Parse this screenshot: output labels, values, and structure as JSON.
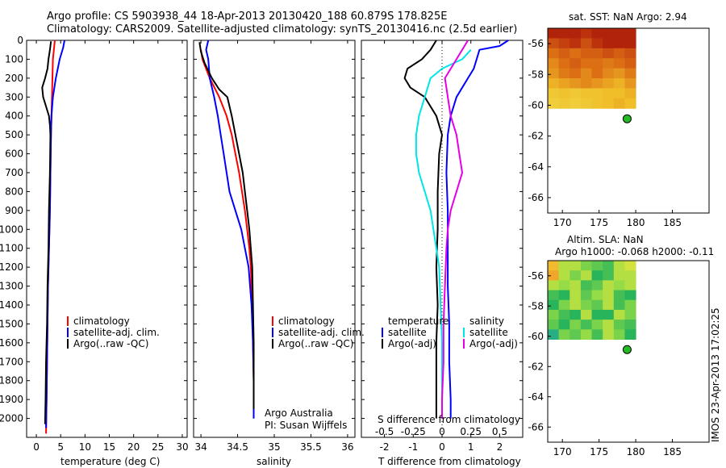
{
  "header": {
    "line1": "Argo profile: CS 5903938_44 18-Apr-2013 20130420_188 60.879S 178.825E",
    "line2": "Climatology: CARS2009. Satellite-adjusted climatology: synTS_20130416.nc (2.5d earlier)"
  },
  "colors": {
    "climatology": "#ff0000",
    "satellite": "#0000ff",
    "argo": "#000000",
    "salinity_sat": "#00e5e5",
    "salinity_argo": "#e500e5",
    "float_marker": "#22bb22"
  },
  "chart_data": [
    {
      "type": "line",
      "id": "temperature",
      "xlabel": "temperature (deg C)",
      "xlim": [
        -2,
        31
      ],
      "ylim": [
        2100,
        0
      ],
      "xticks": [
        0,
        5,
        10,
        15,
        20,
        25,
        30
      ],
      "yticks": [
        0,
        100,
        200,
        300,
        400,
        500,
        600,
        700,
        800,
        900,
        1000,
        1100,
        1200,
        1300,
        1400,
        1500,
        1600,
        1700,
        1800,
        1900,
        2000
      ],
      "legend": [
        "climatology",
        "satellite-adj. clim.",
        "Argo(..raw -QC)"
      ],
      "series": [
        {
          "name": "climatology",
          "color": "#ff0000",
          "points": [
            [
              3.8,
              0
            ],
            [
              3.6,
              50
            ],
            [
              3.4,
              100
            ],
            [
              3.3,
              200
            ],
            [
              3.2,
              300
            ],
            [
              3.1,
              400
            ],
            [
              3.0,
              500
            ],
            [
              2.9,
              700
            ],
            [
              2.8,
              900
            ],
            [
              2.6,
              1100
            ],
            [
              2.4,
              1300
            ],
            [
              2.3,
              1500
            ],
            [
              2.2,
              1700
            ],
            [
              2.1,
              1900
            ],
            [
              2.0,
              2080
            ]
          ]
        },
        {
          "name": "satellite-adj. clim.",
          "color": "#0000ff",
          "points": [
            [
              5.8,
              0
            ],
            [
              5.5,
              40
            ],
            [
              4.8,
              100
            ],
            [
              4.0,
              200
            ],
            [
              3.4,
              300
            ],
            [
              3.1,
              400
            ],
            [
              3.0,
              500
            ],
            [
              2.9,
              700
            ],
            [
              2.8,
              900
            ],
            [
              2.6,
              1100
            ],
            [
              2.4,
              1300
            ],
            [
              2.3,
              1500
            ],
            [
              2.2,
              1700
            ],
            [
              2.1,
              1900
            ],
            [
              2.0,
              2050
            ]
          ]
        },
        {
          "name": "Argo(..raw -QC)",
          "color": "#000000",
          "points": [
            [
              3.0,
              5
            ],
            [
              2.8,
              50
            ],
            [
              2.5,
              100
            ],
            [
              2.3,
              150
            ],
            [
              1.8,
              200
            ],
            [
              1.2,
              250
            ],
            [
              1.4,
              300
            ],
            [
              2.0,
              350
            ],
            [
              2.6,
              400
            ],
            [
              2.8,
              450
            ],
            [
              2.9,
              500
            ],
            [
              2.8,
              700
            ],
            [
              2.6,
              900
            ],
            [
              2.5,
              1100
            ],
            [
              2.3,
              1300
            ],
            [
              2.2,
              1500
            ],
            [
              2.0,
              1700
            ],
            [
              1.9,
              1900
            ],
            [
              1.8,
              2030
            ]
          ]
        }
      ]
    },
    {
      "type": "line",
      "id": "salinity",
      "xlabel": "salinity",
      "xlim": [
        33.9,
        36.1
      ],
      "ylim": [
        2100,
        0
      ],
      "xticks": [
        34,
        34.5,
        35,
        35.5,
        36
      ],
      "legend": [
        "climatology",
        "satellite-adj. clim.",
        "Argo(..raw -QC)"
      ],
      "annotations": [
        "Argo Australia",
        "PI: Susan Wijffels"
      ],
      "series": [
        {
          "name": "climatology",
          "color": "#ff0000",
          "points": [
            [
              34.0,
              50
            ],
            [
              34.02,
              100
            ],
            [
              34.12,
              200
            ],
            [
              34.25,
              300
            ],
            [
              34.35,
              400
            ],
            [
              34.42,
              500
            ],
            [
              34.47,
              600
            ],
            [
              34.52,
              700
            ],
            [
              34.56,
              800
            ],
            [
              34.6,
              900
            ],
            [
              34.63,
              1000
            ],
            [
              34.66,
              1100
            ],
            [
              34.68,
              1200
            ],
            [
              34.7,
              1400
            ],
            [
              34.71,
              1600
            ],
            [
              34.72,
              1800
            ],
            [
              34.72,
              2000
            ]
          ]
        },
        {
          "name": "satellite-adj. clim.",
          "color": "#0000ff",
          "points": [
            [
              34.1,
              0
            ],
            [
              34.07,
              50
            ],
            [
              34.1,
              100
            ],
            [
              34.12,
              200
            ],
            [
              34.18,
              300
            ],
            [
              34.23,
              400
            ],
            [
              34.27,
              500
            ],
            [
              34.31,
              600
            ],
            [
              34.35,
              700
            ],
            [
              34.39,
              800
            ],
            [
              34.47,
              900
            ],
            [
              34.55,
              1000
            ],
            [
              34.6,
              1100
            ],
            [
              34.65,
              1200
            ],
            [
              34.69,
              1400
            ],
            [
              34.71,
              1600
            ],
            [
              34.72,
              1800
            ],
            [
              34.72,
              2000
            ]
          ]
        },
        {
          "name": "Argo(..raw -QC)",
          "color": "#000000",
          "points": [
            [
              33.98,
              10
            ],
            [
              34.0,
              60
            ],
            [
              34.05,
              120
            ],
            [
              34.15,
              200
            ],
            [
              34.25,
              260
            ],
            [
              34.36,
              300
            ],
            [
              34.42,
              400
            ],
            [
              34.47,
              500
            ],
            [
              34.52,
              600
            ],
            [
              34.57,
              700
            ],
            [
              34.6,
              800
            ],
            [
              34.63,
              900
            ],
            [
              34.66,
              1000
            ],
            [
              34.68,
              1100
            ],
            [
              34.7,
              1200
            ],
            [
              34.71,
              1400
            ],
            [
              34.72,
              1600
            ],
            [
              34.72,
              1800
            ],
            [
              34.72,
              1950
            ]
          ]
        }
      ]
    },
    {
      "type": "line",
      "id": "difference",
      "xlabel": "T difference from climatology",
      "xlabel_top": "S difference from climatology",
      "xlim": [
        -2.8,
        2.8
      ],
      "ylim": [
        2100,
        0
      ],
      "xticks": [
        -2,
        -1,
        0,
        1,
        2
      ],
      "xticklabels_s": [
        "-0.5",
        "-0.25",
        "0",
        "0.25",
        "0.5"
      ],
      "legend_headers": [
        "temperature",
        "salinity"
      ],
      "legend": [
        "satellite",
        "Argo(-adj)",
        "satellite",
        "Argo(-adj)"
      ],
      "series": [
        {
          "name": "temperature satellite",
          "color": "#0000ff",
          "points": [
            [
              2.3,
              0
            ],
            [
              2.0,
              30
            ],
            [
              1.3,
              50
            ],
            [
              1.2,
              100
            ],
            [
              1.1,
              150
            ],
            [
              0.9,
              200
            ],
            [
              0.5,
              300
            ],
            [
              0.3,
              400
            ],
            [
              0.2,
              500
            ],
            [
              0.15,
              700
            ],
            [
              0.2,
              900
            ],
            [
              0.2,
              1100
            ],
            [
              0.2,
              1300
            ],
            [
              0.25,
              1500
            ],
            [
              0.25,
              1700
            ],
            [
              0.3,
              1900
            ],
            [
              0.3,
              2000
            ]
          ]
        },
        {
          "name": "temperature Argo(-adj)",
          "color": "#000000",
          "points": [
            [
              -0.2,
              0
            ],
            [
              -0.4,
              50
            ],
            [
              -0.7,
              100
            ],
            [
              -1.2,
              150
            ],
            [
              -1.3,
              200
            ],
            [
              -1.1,
              250
            ],
            [
              -0.6,
              300
            ],
            [
              -0.2,
              400
            ],
            [
              0.0,
              500
            ],
            [
              -0.1,
              600
            ],
            [
              -0.15,
              800
            ],
            [
              -0.15,
              1000
            ],
            [
              -0.2,
              1200
            ],
            [
              -0.15,
              1400
            ],
            [
              -0.2,
              1600
            ],
            [
              -0.2,
              1800
            ],
            [
              -0.2,
              2000
            ]
          ]
        },
        {
          "name": "salinity satellite",
          "color": "#00e5e5",
          "points": [
            [
              1.0,
              50
            ],
            [
              0.7,
              100
            ],
            [
              0.0,
              150
            ],
            [
              -0.4,
              200
            ],
            [
              -0.6,
              300
            ],
            [
              -0.8,
              400
            ],
            [
              -0.9,
              500
            ],
            [
              -0.9,
              600
            ],
            [
              -0.8,
              700
            ],
            [
              -0.6,
              800
            ],
            [
              -0.4,
              900
            ],
            [
              -0.3,
              1000
            ],
            [
              -0.2,
              1100
            ],
            [
              -0.1,
              1200
            ],
            [
              -0.05,
              1400
            ],
            [
              0.0,
              1600
            ],
            [
              0.0,
              1800
            ],
            [
              0.0,
              2000
            ]
          ]
        },
        {
          "name": "salinity Argo(-adj)",
          "color": "#e500e5",
          "points": [
            [
              0.9,
              0
            ],
            [
              0.5,
              100
            ],
            [
              0.1,
              200
            ],
            [
              0.2,
              300
            ],
            [
              0.3,
              400
            ],
            [
              0.5,
              500
            ],
            [
              0.6,
              600
            ],
            [
              0.7,
              700
            ],
            [
              0.5,
              800
            ],
            [
              0.3,
              900
            ],
            [
              0.2,
              1000
            ],
            [
              0.15,
              1100
            ],
            [
              0.1,
              1300
            ],
            [
              0.05,
              1500
            ],
            [
              0.05,
              1700
            ],
            [
              0.0,
              1900
            ],
            [
              0.0,
              2000
            ]
          ]
        }
      ]
    },
    {
      "type": "heatmap",
      "id": "sst",
      "title": "sat. SST: NaN Argo: 2.94",
      "xlim": [
        168,
        190
      ],
      "ylim": [
        -67,
        -55
      ],
      "xticks": [
        170,
        175,
        180,
        185
      ],
      "yticks": [
        -56,
        -58,
        -60,
        -62,
        -64,
        -66
      ],
      "float": [
        178.825,
        -60.879
      ],
      "grid": [
        [
          0.95,
          0.95,
          0.95,
          0.9,
          0.95,
          0.95,
          0.95,
          0.95
        ],
        [
          0.8,
          0.85,
          0.9,
          0.8,
          0.9,
          0.95,
          0.95,
          0.95
        ],
        [
          0.7,
          0.75,
          0.7,
          0.75,
          0.75,
          0.8,
          0.75,
          0.8
        ],
        [
          0.6,
          0.7,
          0.75,
          0.7,
          0.7,
          0.65,
          0.7,
          0.75
        ],
        [
          0.55,
          0.65,
          0.7,
          0.6,
          0.7,
          0.6,
          0.55,
          0.65
        ],
        [
          0.45,
          0.5,
          0.55,
          0.6,
          0.55,
          0.5,
          0.45,
          0.55
        ],
        [
          0.3,
          0.35,
          0.3,
          0.35,
          0.35,
          0.4,
          0.4,
          0.45
        ],
        [
          0.25,
          0.3,
          0.25,
          0.3,
          0.35,
          0.4,
          0.45,
          0.4
        ]
      ]
    },
    {
      "type": "heatmap",
      "id": "sla",
      "title": "Altim. SLA: NaN",
      "subtitle": "Argo h1000: -0.068 h2000: -0.11",
      "xlim": [
        168,
        190
      ],
      "ylim": [
        -67,
        -55
      ],
      "xticks": [
        170,
        175,
        180,
        185
      ],
      "yticks": [
        -56,
        -58,
        -60,
        -62,
        -64,
        -66
      ],
      "float": [
        178.825,
        -60.879
      ],
      "grid": [
        [
          0.75,
          0.55,
          0.55,
          0.45,
          0.4,
          0.35,
          0.55,
          0.6
        ],
        [
          0.8,
          0.55,
          0.45,
          0.55,
          0.3,
          0.35,
          0.55,
          0.55
        ],
        [
          0.55,
          0.5,
          0.55,
          0.35,
          0.4,
          0.55,
          0.5,
          0.55
        ],
        [
          0.35,
          0.3,
          0.55,
          0.4,
          0.5,
          0.55,
          0.35,
          0.3
        ],
        [
          0.3,
          0.45,
          0.55,
          0.45,
          0.4,
          0.55,
          0.35,
          0.45
        ],
        [
          0.45,
          0.35,
          0.3,
          0.55,
          0.3,
          0.3,
          0.55,
          0.45
        ],
        [
          0.4,
          0.3,
          0.45,
          0.35,
          0.45,
          0.55,
          0.4,
          0.35
        ],
        [
          0.2,
          0.45,
          0.4,
          0.5,
          0.35,
          0.55,
          0.45,
          0.3
        ]
      ]
    }
  ],
  "timestamp": "IMOS 23-Apr-2013 17:02:25"
}
